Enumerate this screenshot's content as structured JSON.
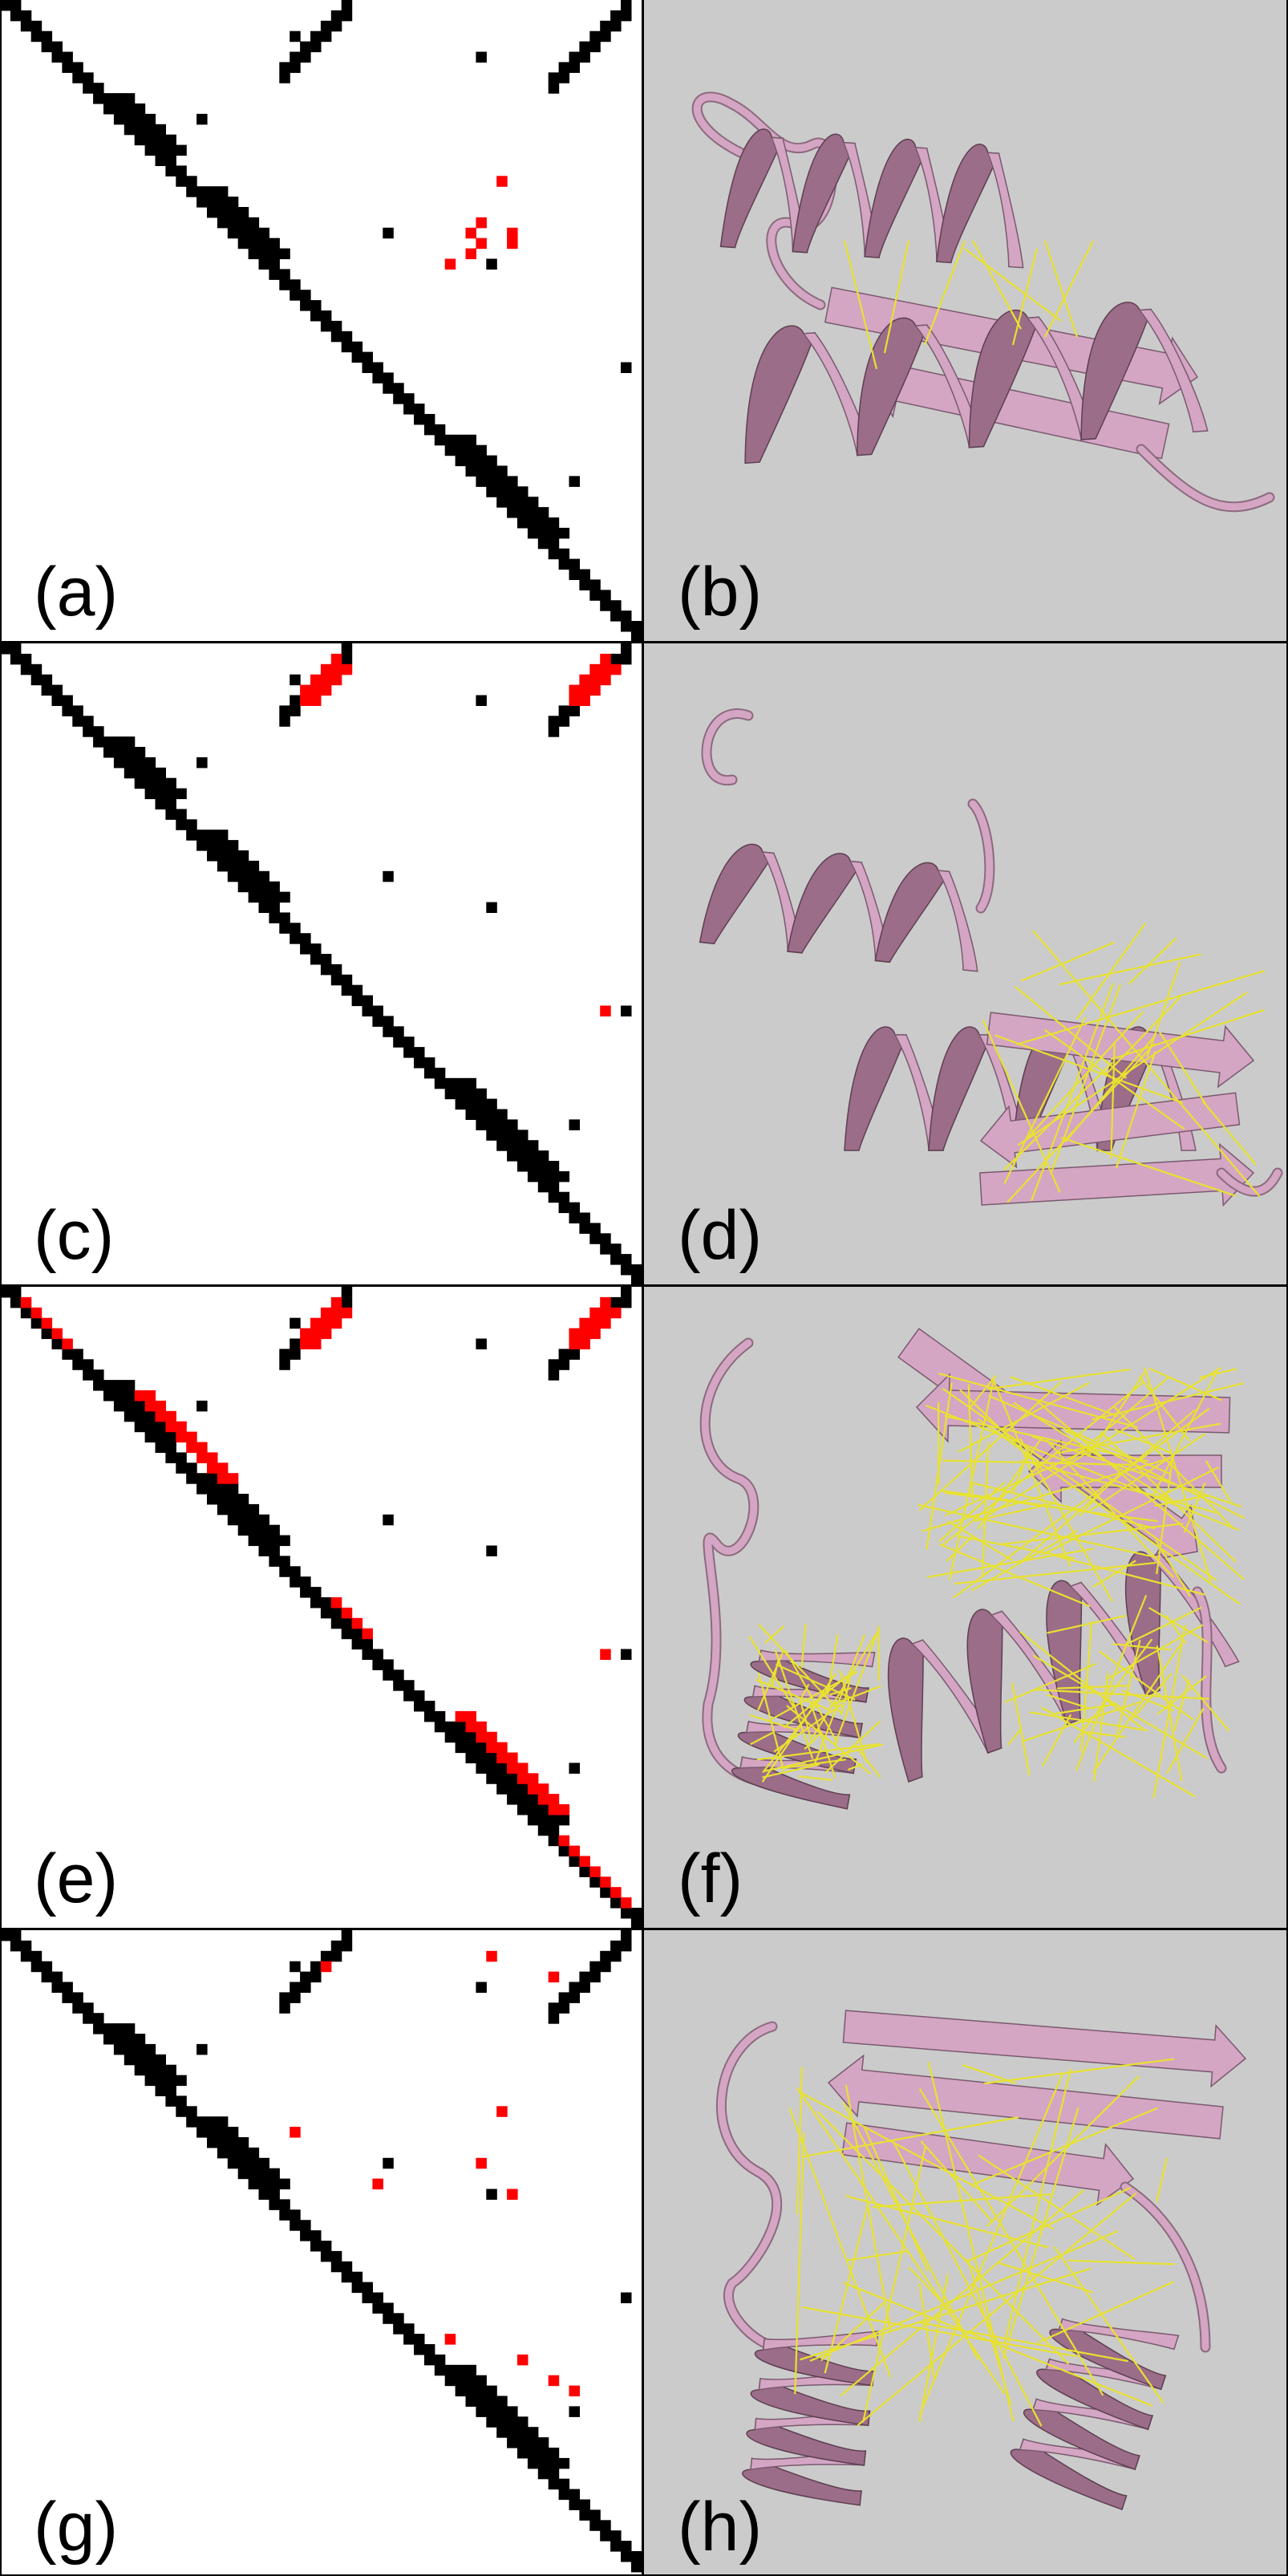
{
  "colors": {
    "page": "#ffffff",
    "contact": "#000000",
    "highlight": "#ff0000",
    "structure_bg": "#cbcbcb",
    "ribbon": "#d4a6c4",
    "ribbon_dark": "#9c6d88",
    "contact_line": "#e8e230"
  },
  "rows": [
    {
      "map": {
        "label": "(a)",
        "highlight": "pair-clusters"
      },
      "structure": {
        "label": "(b)"
      }
    },
    {
      "map": {
        "label": "(c)",
        "highlight": "strand-blocks"
      },
      "structure": {
        "label": "(d)"
      }
    },
    {
      "map": {
        "label": "(e)",
        "highlight": "strand-blocks-and-diagonal"
      },
      "structure": {
        "label": "(f)"
      }
    },
    {
      "map": {
        "label": "(g)",
        "highlight": "scattered"
      },
      "structure": {
        "label": "(h)"
      }
    }
  ]
}
